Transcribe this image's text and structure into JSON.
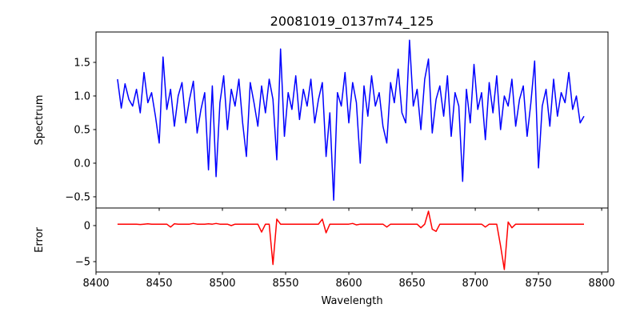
{
  "chart_data": [
    {
      "type": "line",
      "title": "20081019_0137m74_125",
      "ylabel": "Spectrum",
      "xlabel": "",
      "xlim": [
        8400,
        8805
      ],
      "ylim": [
        -0.667,
        1.952
      ],
      "xticks": [
        8400,
        8450,
        8500,
        8550,
        8600,
        8650,
        8700,
        8750,
        8800
      ],
      "yticks": [
        -0.5,
        0.0,
        0.5,
        1.0,
        1.5
      ],
      "ytick_labels": [
        "−0.5",
        "0.0",
        "0.5",
        "1.0",
        "1.5"
      ],
      "color": "#0000ff",
      "x_start": 8417,
      "x_step": 3,
      "values": [
        1.25,
        0.82,
        1.18,
        0.95,
        0.85,
        1.1,
        0.75,
        1.35,
        0.9,
        1.05,
        0.7,
        0.3,
        1.58,
        0.8,
        1.1,
        0.55,
        1.0,
        1.2,
        0.6,
        0.95,
        1.22,
        0.45,
        0.8,
        1.05,
        -0.1,
        1.15,
        -0.2,
        0.9,
        1.3,
        0.5,
        1.1,
        0.85,
        1.25,
        0.6,
        0.1,
        1.2,
        0.9,
        0.55,
        1.15,
        0.75,
        1.25,
        0.95,
        0.05,
        1.7,
        0.4,
        1.05,
        0.8,
        1.3,
        0.65,
        1.1,
        0.85,
        1.25,
        0.6,
        0.95,
        1.2,
        0.1,
        0.75,
        -0.55,
        1.05,
        0.85,
        1.35,
        0.6,
        1.2,
        0.9,
        0.0,
        1.15,
        0.7,
        1.3,
        0.85,
        1.05,
        0.55,
        0.3,
        1.2,
        0.9,
        1.4,
        0.75,
        0.6,
        1.83,
        0.85,
        1.1,
        0.5,
        1.25,
        1.55,
        0.45,
        0.95,
        1.15,
        0.7,
        1.3,
        0.4,
        1.05,
        0.85,
        -0.27,
        1.1,
        0.6,
        1.47,
        0.8,
        1.05,
        0.35,
        1.2,
        0.75,
        1.3,
        0.5,
        1.0,
        0.85,
        1.25,
        0.55,
        0.95,
        1.15,
        0.4,
        0.9,
        1.52,
        -0.07,
        0.85,
        1.1,
        0.55,
        1.25,
        0.7,
        1.05,
        0.9,
        1.35,
        0.8,
        1.0,
        0.6,
        0.7
      ]
    },
    {
      "type": "line",
      "ylabel": "Error",
      "xlabel": "Wavelength",
      "xlim": [
        8400,
        8805
      ],
      "ylim": [
        -6.44,
        2.44
      ],
      "xticks": [
        8400,
        8450,
        8500,
        8550,
        8600,
        8650,
        8700,
        8750,
        8800
      ],
      "xtick_labels": [
        "8400",
        "8450",
        "8500",
        "8550",
        "8600",
        "8650",
        "8700",
        "8750",
        "8800"
      ],
      "yticks": [
        0,
        -5
      ],
      "ytick_labels": [
        "0",
        "−5"
      ],
      "color": "#ff0000",
      "x_start": 8417,
      "x_step": 3,
      "values": [
        0.2,
        0.2,
        0.2,
        0.2,
        0.2,
        0.2,
        0.15,
        0.2,
        0.25,
        0.2,
        0.2,
        0.2,
        0.2,
        0.2,
        -0.2,
        0.25,
        0.2,
        0.2,
        0.2,
        0.2,
        0.3,
        0.2,
        0.2,
        0.2,
        0.25,
        0.2,
        0.3,
        0.2,
        0.2,
        0.2,
        0.0,
        0.2,
        0.2,
        0.2,
        0.2,
        0.2,
        0.2,
        0.2,
        -0.9,
        0.2,
        0.2,
        -5.4,
        0.9,
        0.2,
        0.2,
        0.2,
        0.2,
        0.2,
        0.2,
        0.2,
        0.2,
        0.2,
        0.2,
        0.2,
        0.9,
        -1.0,
        0.2,
        0.2,
        0.2,
        0.2,
        0.2,
        0.2,
        0.3,
        0.1,
        0.2,
        0.2,
        0.2,
        0.2,
        0.2,
        0.2,
        0.2,
        -0.2,
        0.2,
        0.2,
        0.2,
        0.2,
        0.2,
        0.2,
        0.2,
        0.2,
        -0.3,
        0.2,
        2.0,
        -0.5,
        -0.8,
        0.2,
        0.2,
        0.2,
        0.2,
        0.2,
        0.2,
        0.2,
        0.2,
        0.2,
        0.2,
        0.2,
        0.2,
        -0.2,
        0.2,
        0.2,
        0.2,
        -2.8,
        -6.1,
        0.5,
        -0.3,
        0.2,
        0.2,
        0.2,
        0.2,
        0.2,
        0.2,
        0.2,
        0.2,
        0.2,
        0.2,
        0.2,
        0.2,
        0.2,
        0.2,
        0.2,
        0.2,
        0.2,
        0.2,
        0.2
      ]
    }
  ]
}
